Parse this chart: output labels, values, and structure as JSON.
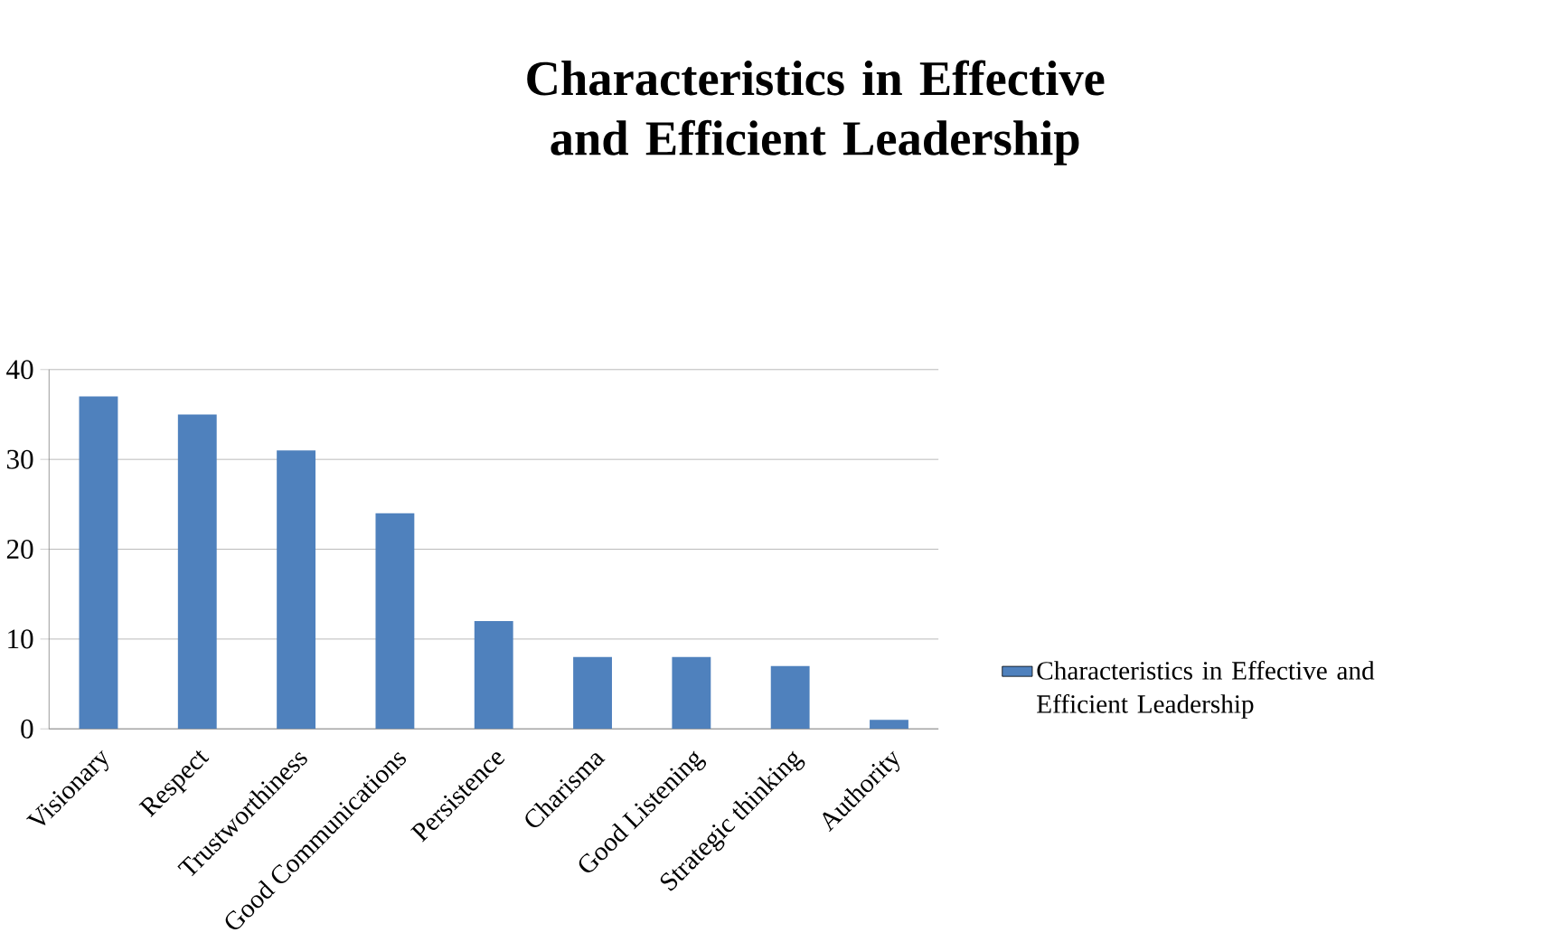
{
  "chart_data": {
    "type": "bar",
    "title": "Characteristics in Effective and Efficient Leadership",
    "categories": [
      "Visionary",
      "Respect",
      "Trustworthiness",
      "Good Communications",
      "Persistence",
      "Charisma",
      "Good Listening",
      "Strategic thinking",
      "Authority"
    ],
    "series": [
      {
        "name": "Characteristics in Effective and Efficient Leadership",
        "color": "#4f81bd",
        "values": [
          37,
          35,
          31,
          24,
          12,
          8,
          8,
          7,
          1
        ]
      }
    ],
    "ylim": [
      0,
      40
    ],
    "yticks": [
      0,
      10,
      20,
      30,
      40
    ],
    "grid": "y",
    "legend": "right"
  }
}
